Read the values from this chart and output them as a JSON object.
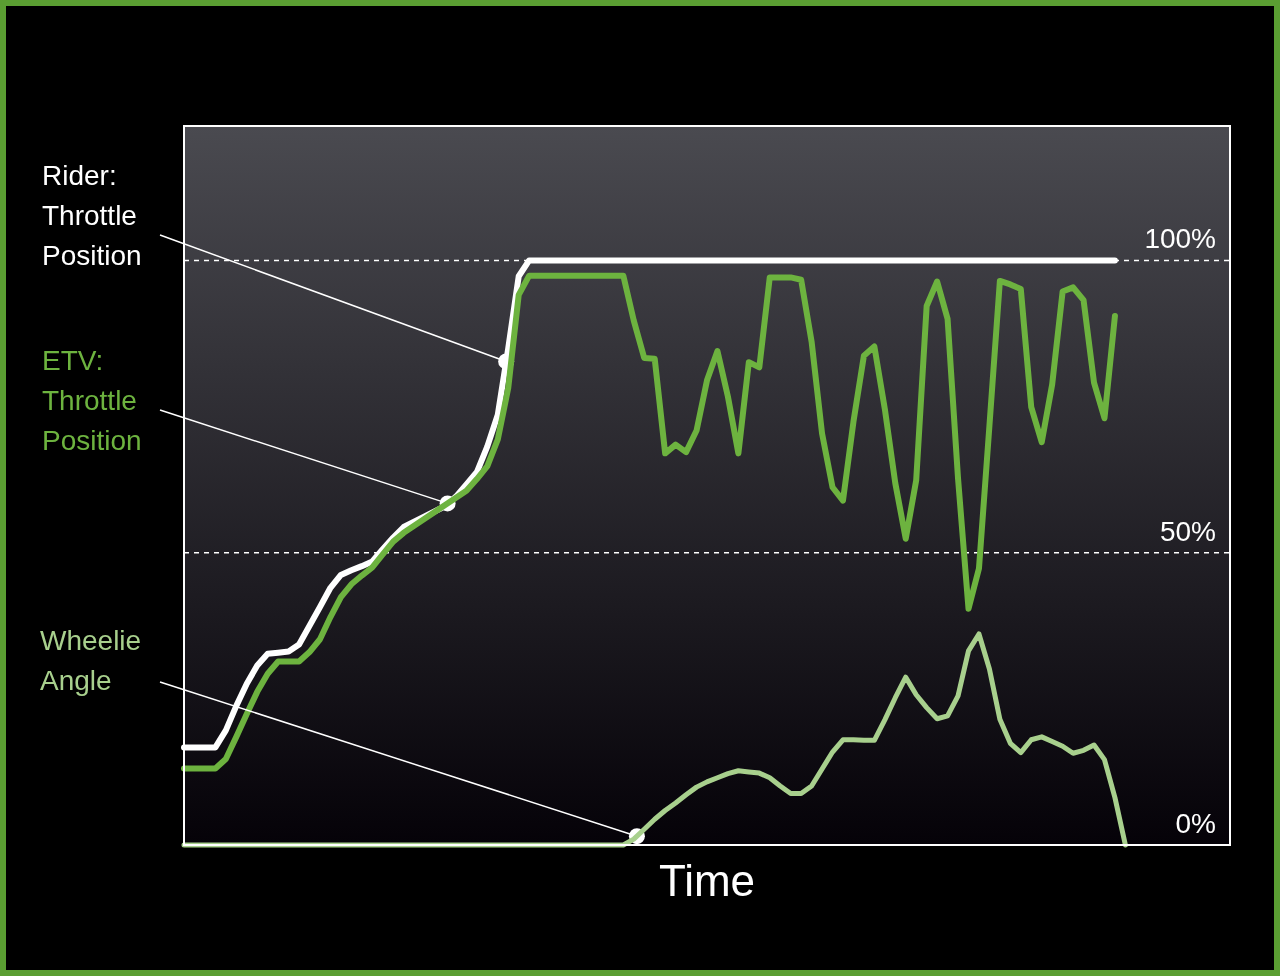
{
  "chart_data": {
    "type": "line",
    "xlabel": "Time",
    "categories": [
      null,
      null,
      null,
      null,
      null,
      null,
      null,
      null,
      null,
      null,
      null,
      null,
      null,
      null,
      null,
      null,
      null,
      null,
      null,
      null,
      null,
      null,
      null,
      null,
      null,
      null,
      null,
      null,
      null,
      null,
      null,
      null,
      null,
      null,
      null,
      null,
      null,
      null,
      null,
      null,
      null,
      null,
      null,
      null,
      null,
      null,
      null,
      null,
      null,
      null,
      null,
      null,
      null,
      null,
      null,
      null,
      null,
      null,
      null,
      null,
      null,
      null,
      null,
      null,
      null,
      null,
      null,
      null,
      null,
      null,
      null,
      null,
      null,
      null,
      null,
      null,
      null,
      null,
      null,
      null,
      null,
      null,
      null,
      null,
      null,
      null,
      null,
      null,
      null,
      null,
      null,
      null,
      null,
      null,
      null,
      null,
      null,
      null,
      null,
      null,
      null
    ],
    "ylim": [
      0,
      123
    ],
    "yticks": [
      {
        "value": 0,
        "label": "0%"
      },
      {
        "value": 50,
        "label": "50%"
      },
      {
        "value": 100,
        "label": "100%"
      }
    ],
    "grid": "y",
    "line_style": "solid",
    "marker": "none",
    "tick_labels": "y",
    "series": [
      {
        "name": "Rider: Throttle Position",
        "color": "#ffffff",
        "values": [
          16.7,
          16.7,
          16.7,
          16.7,
          19.6,
          23.8,
          27.6,
          30.7,
          32.7,
          32.9,
          33.1,
          34.3,
          37.5,
          40.7,
          44.0,
          46.2,
          47.0,
          47.7,
          48.5,
          50.6,
          52.6,
          54.4,
          55.3,
          56.2,
          57.1,
          58.0,
          59.6,
          61.7,
          63.8,
          68.2,
          73.6,
          85.0,
          97.3,
          100,
          100,
          100,
          100,
          100,
          100,
          100,
          100,
          100,
          100,
          100,
          100,
          100,
          100,
          100,
          100,
          100,
          100,
          100,
          100,
          100,
          100,
          100,
          100,
          100,
          100,
          100,
          100,
          100,
          100,
          100,
          100,
          100,
          100,
          100,
          100,
          100,
          100,
          100,
          100,
          100,
          100,
          100,
          100,
          100,
          100,
          100,
          100,
          100,
          100,
          100,
          100,
          100,
          100,
          100,
          100,
          100,
          null,
          null,
          null,
          null,
          null,
          null,
          null,
          null,
          null,
          null,
          null
        ]
      },
      {
        "name": "ETV: Throttle Position",
        "color": "#6db33f",
        "values": [
          13.1,
          13.1,
          13.1,
          13.1,
          14.7,
          18.5,
          22.4,
          26.2,
          29.3,
          31.4,
          31.4,
          31.4,
          33.0,
          35.2,
          39.0,
          42.4,
          44.6,
          46.1,
          47.5,
          49.7,
          51.9,
          53.4,
          54.6,
          55.8,
          57.0,
          58.2,
          59.4,
          60.6,
          62.6,
          64.8,
          69.4,
          78.2,
          94.1,
          97.4,
          97.4,
          97.4,
          97.4,
          97.4,
          97.4,
          97.4,
          97.4,
          97.4,
          97.4,
          89.7,
          83.3,
          83.2,
          67.0,
          68.5,
          67.2,
          70.9,
          79.5,
          84.5,
          76.7,
          67.0,
          82.6,
          81.7,
          97.1,
          97.1,
          97.1,
          96.7,
          86.1,
          70.4,
          61.2,
          58.9,
          72.4,
          83.7,
          85.3,
          74.6,
          61.9,
          52.4,
          62.4,
          92.2,
          96.4,
          90.0,
          62.7,
          40.4,
          47.3,
          71.7,
          96.5,
          95.9,
          95.1,
          74.9,
          68.9,
          78.8,
          94.7,
          95.4,
          93.2,
          79.1,
          73.0,
          90.5,
          null,
          null,
          null,
          null,
          null,
          null,
          null,
          null,
          null,
          null,
          null
        ]
      },
      {
        "name": "Wheelie Angle",
        "color": "#a8d08d",
        "values": [
          0,
          0,
          0,
          0,
          0,
          0,
          0,
          0,
          0,
          0,
          0,
          0,
          0,
          0,
          0,
          0,
          0,
          0,
          0,
          0,
          0,
          0,
          0,
          0,
          0,
          0,
          0,
          0,
          0,
          0,
          0,
          0,
          0,
          0,
          0,
          0,
          0,
          0,
          0,
          0,
          0,
          0,
          0,
          1.0,
          2.7,
          4.4,
          5.9,
          7.2,
          8.6,
          9.9,
          10.8,
          11.5,
          12.2,
          12.7,
          12.5,
          12.3,
          11.5,
          10.1,
          8.8,
          8.8,
          10.1,
          13.0,
          15.9,
          18.0,
          18.0,
          17.9,
          17.9,
          21.4,
          25.2,
          28.7,
          25.7,
          23.5,
          21.6,
          22.1,
          25.5,
          33.2,
          36.1,
          30.1,
          21.5,
          17.4,
          15.8,
          18.0,
          18.5,
          17.7,
          16.9,
          15.7,
          16.2,
          17.1,
          14.6,
          8.1,
          0,
          null,
          null,
          null,
          null,
          null,
          null,
          null,
          null,
          null,
          null
        ]
      }
    ]
  }
}
